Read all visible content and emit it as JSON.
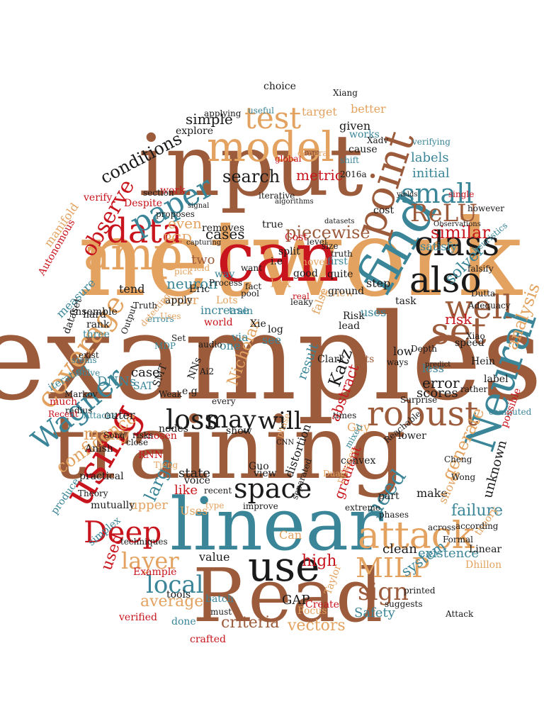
{
  "palette": {
    "brown": "#9c5b3b",
    "tan": "#e3a25f",
    "teal": "#3a8597",
    "red": "#c8141c",
    "black": "#1a1a1a"
  },
  "words": [
    {
      "text": "examples",
      "color": "brown"
    },
    {
      "text": "network",
      "color": "tan"
    },
    {
      "text": "input",
      "color": "brown"
    },
    {
      "text": "training",
      "color": "brown"
    },
    {
      "text": "linear",
      "color": "teal"
    },
    {
      "text": "Read",
      "color": "brown"
    },
    {
      "text": "can",
      "color": "red"
    },
    {
      "text": "find",
      "color": "teal"
    },
    {
      "text": "model",
      "color": "tan"
    },
    {
      "text": "amp",
      "color": "tan"
    },
    {
      "text": "data",
      "color": "red"
    },
    {
      "text": "paper",
      "color": "teal"
    },
    {
      "text": "point",
      "color": "brown"
    },
    {
      "text": "class",
      "color": "black"
    },
    {
      "text": "also",
      "color": "black"
    },
    {
      "text": "well",
      "color": "brown"
    },
    {
      "text": "set",
      "color": "brown"
    },
    {
      "text": "Neural",
      "color": "teal"
    },
    {
      "text": "coverage",
      "color": "tan"
    },
    {
      "text": "using",
      "color": "red"
    },
    {
      "text": "Wagner",
      "color": "teal"
    },
    {
      "text": "attack",
      "color": "tan"
    },
    {
      "text": "robust",
      "color": "brown"
    },
    {
      "text": "use",
      "color": "black"
    },
    {
      "text": "Deep",
      "color": "red"
    },
    {
      "text": "space",
      "color": "black"
    },
    {
      "text": "loss",
      "color": "black"
    },
    {
      "text": "MILP",
      "color": "tan"
    },
    {
      "text": "test",
      "color": "tan"
    },
    {
      "text": "small",
      "color": "teal"
    },
    {
      "text": "ReLU",
      "color": "brown"
    },
    {
      "text": "layer",
      "color": "tan"
    },
    {
      "text": "local",
      "color": "teal"
    },
    {
      "text": "sign",
      "color": "brown"
    },
    {
      "text": "may",
      "color": "black"
    },
    {
      "text": "will",
      "color": "black"
    },
    {
      "text": "need",
      "color": "teal"
    },
    {
      "text": "observe",
      "color": "red"
    },
    {
      "text": "conditions",
      "color": "black"
    },
    {
      "text": "search",
      "color": "black"
    },
    {
      "text": "piecewise",
      "color": "brown"
    },
    {
      "text": "similar",
      "color": "red"
    },
    {
      "text": "criteria",
      "color": "brown"
    },
    {
      "text": "average",
      "color": "tan"
    },
    {
      "text": "confidence",
      "color": "tan"
    },
    {
      "text": "analysis",
      "color": "tan"
    },
    {
      "text": "generate",
      "color": "tan"
    },
    {
      "text": "failure",
      "color": "teal"
    },
    {
      "text": "used",
      "color": "red"
    },
    {
      "text": "vectors",
      "color": "tan"
    },
    {
      "text": "system",
      "color": "teal"
    },
    {
      "text": "existence",
      "color": "teal"
    },
    {
      "text": "Safety",
      "color": "teal"
    },
    {
      "text": "many",
      "color": "tan"
    },
    {
      "text": "high",
      "color": "red"
    },
    {
      "text": "large",
      "color": "teal"
    },
    {
      "text": "simple",
      "color": "black"
    },
    {
      "text": "two",
      "color": "brown"
    },
    {
      "text": "cases",
      "color": "black"
    },
    {
      "text": "neuron",
      "color": "teal"
    },
    {
      "text": "order",
      "color": "tan"
    },
    {
      "text": "even",
      "color": "tan"
    },
    {
      "text": "metric",
      "color": "red"
    },
    {
      "text": "initial",
      "color": "teal"
    },
    {
      "text": "labels",
      "color": "teal"
    },
    {
      "text": "solver",
      "color": "teal"
    },
    {
      "text": "risk",
      "color": "red"
    },
    {
      "text": "error",
      "color": "black"
    },
    {
      "text": "scores",
      "color": "black"
    },
    {
      "text": "unknown",
      "color": "black"
    },
    {
      "text": "Katz",
      "color": "black"
    },
    {
      "text": "Nicholas",
      "color": "tan"
    },
    {
      "text": "result",
      "color": "teal"
    },
    {
      "text": "abstract",
      "color": "red"
    },
    {
      "text": "case",
      "color": "black"
    },
    {
      "text": "DNNs",
      "color": "teal"
    },
    {
      "text": "upper",
      "color": "tan"
    },
    {
      "text": "clean",
      "color": "black"
    },
    {
      "text": "GAP",
      "color": "black"
    },
    {
      "text": "PGD",
      "color": "tan"
    },
    {
      "text": "tend",
      "color": "black"
    },
    {
      "text": "measure",
      "color": "teal"
    },
    {
      "text": "manifold",
      "color": "tan"
    },
    {
      "text": "Autonomous",
      "color": "red"
    },
    {
      "text": "dataset",
      "color": "black"
    },
    {
      "text": "iteration",
      "color": "teal"
    },
    {
      "text": "much",
      "color": "red"
    },
    {
      "text": "Guy",
      "color": "tan"
    },
    {
      "text": "make",
      "color": "black"
    },
    {
      "text": "shows",
      "color": "tan"
    },
    {
      "text": "Linear",
      "color": "black"
    },
    {
      "text": "Dhillon",
      "color": "tan"
    },
    {
      "text": "Uses",
      "color": "tan"
    },
    {
      "text": "Can",
      "color": "tan"
    },
    {
      "text": "produce",
      "color": "teal"
    },
    {
      "text": "simplex",
      "color": "teal"
    },
    {
      "text": "practical",
      "color": "black"
    },
    {
      "text": "Example",
      "color": "red"
    },
    {
      "text": "verified",
      "color": "red"
    },
    {
      "text": "crafted",
      "color": "red"
    },
    {
      "text": "done",
      "color": "teal"
    },
    {
      "text": "Focus",
      "color": "tan"
    },
    {
      "text": "Clark",
      "color": "black"
    },
    {
      "text": "Hein",
      "color": "black"
    },
    {
      "text": "label",
      "color": "black"
    },
    {
      "text": "low",
      "color": "black"
    },
    {
      "text": "less",
      "color": "teal"
    },
    {
      "text": "sets",
      "color": "brown"
    },
    {
      "text": "uses",
      "color": "teal"
    },
    {
      "text": "speed",
      "color": "black"
    },
    {
      "text": "via",
      "color": "teal"
    },
    {
      "text": "one",
      "color": "teal"
    },
    {
      "text": "see",
      "color": "teal"
    },
    {
      "text": "box",
      "color": "tan"
    },
    {
      "text": "increase",
      "color": "teal"
    },
    {
      "text": "false",
      "color": "tan"
    },
    {
      "text": "gradient",
      "color": "red"
    },
    {
      "text": "distortion",
      "color": "black"
    },
    {
      "text": "step",
      "color": "black"
    },
    {
      "text": "satisfy",
      "color": "teal"
    },
    {
      "text": "cost",
      "color": "black"
    },
    {
      "text": "given",
      "color": "black"
    },
    {
      "text": "better",
      "color": "tan"
    },
    {
      "text": "target",
      "color": "tan"
    },
    {
      "text": "works",
      "color": "teal"
    },
    {
      "text": "cause",
      "color": "black"
    },
    {
      "text": "choice",
      "color": "black"
    },
    {
      "text": "Xiang",
      "color": "black"
    },
    {
      "text": "verify",
      "color": "red"
    },
    {
      "text": "work",
      "color": "red"
    },
    {
      "text": "explore",
      "color": "black"
    },
    {
      "text": "applying",
      "color": "black"
    },
    {
      "text": "useful",
      "color": "teal"
    },
    {
      "text": "state",
      "color": "black"
    },
    {
      "text": "like",
      "color": "red"
    },
    {
      "text": "mutually",
      "color": "black"
    },
    {
      "text": "outer",
      "color": "black"
    },
    {
      "text": "Anish",
      "color": "black"
    },
    {
      "text": "radius",
      "color": "black"
    },
    {
      "text": "Attacks",
      "color": "teal"
    },
    {
      "text": "Recent",
      "color": "red"
    },
    {
      "text": "Markov",
      "color": "black"
    },
    {
      "text": "Solve",
      "color": "teal"
    },
    {
      "text": "ensemble",
      "color": "black"
    },
    {
      "text": "hard",
      "color": "black"
    },
    {
      "text": "rank",
      "color": "black"
    },
    {
      "text": "three",
      "color": "teal"
    },
    {
      "text": "SMT",
      "color": "black"
    },
    {
      "text": "SAT",
      "color": "teal"
    },
    {
      "text": "Weak",
      "color": "black"
    },
    {
      "text": "NNs",
      "color": "black"
    },
    {
      "text": "e.g",
      "color": "black"
    },
    {
      "text": "Eric",
      "color": "black"
    },
    {
      "text": "apply",
      "color": "black"
    },
    {
      "text": "world",
      "color": "red"
    },
    {
      "text": "errors",
      "color": "teal"
    },
    {
      "text": "Set",
      "color": "black"
    },
    {
      "text": "show",
      "color": "black"
    },
    {
      "text": "nodes",
      "color": "black"
    },
    {
      "text": "must",
      "color": "black"
    },
    {
      "text": "tools",
      "color": "black"
    },
    {
      "text": "batch",
      "color": "teal"
    },
    {
      "text": "value",
      "color": "black"
    },
    {
      "text": "techniques",
      "color": "black"
    },
    {
      "text": "voice",
      "color": "black"
    },
    {
      "text": "RNN",
      "color": "red"
    },
    {
      "text": "chosen",
      "color": "red"
    },
    {
      "text": "global",
      "color": "red"
    },
    {
      "text": "proposes",
      "color": "black"
    },
    {
      "text": "Despite",
      "color": "red"
    },
    {
      "text": "removes",
      "color": "black"
    },
    {
      "text": "way",
      "color": "teal"
    },
    {
      "text": "Lots",
      "color": "tan"
    },
    {
      "text": "train",
      "color": "teal"
    },
    {
      "text": "Xie",
      "color": "black"
    },
    {
      "text": "log",
      "color": "black"
    },
    {
      "text": "i.e",
      "color": "black"
    },
    {
      "text": "novel",
      "color": "tan"
    },
    {
      "text": "good",
      "color": "black"
    },
    {
      "text": "first",
      "color": "teal"
    },
    {
      "text": "quite",
      "color": "black"
    },
    {
      "text": "review",
      "color": "tan"
    },
    {
      "text": "Risk",
      "color": "black"
    },
    {
      "text": "lead",
      "color": "black"
    },
    {
      "text": "ground",
      "color": "black"
    },
    {
      "text": "truth",
      "color": "black"
    },
    {
      "text": "Cost",
      "color": "red"
    },
    {
      "text": "true",
      "color": "black"
    },
    {
      "text": "split",
      "color": "black"
    },
    {
      "text": "task",
      "color": "black"
    },
    {
      "text": "heuristics",
      "color": "teal"
    },
    {
      "text": "falsify",
      "color": "black"
    },
    {
      "text": "Adequacy",
      "color": "black"
    },
    {
      "text": "Dutta",
      "color": "black"
    },
    {
      "text": "Xiao",
      "color": "black"
    },
    {
      "text": "Xadv",
      "color": "black"
    },
    {
      "text": "verifying",
      "color": "teal"
    },
    {
      "text": "shift",
      "color": "teal"
    },
    {
      "text": "2016a",
      "color": "black"
    },
    {
      "text": "suggests",
      "color": "black"
    },
    {
      "text": "across",
      "color": "black"
    },
    {
      "text": "theory",
      "color": "tan"
    },
    {
      "text": "computed",
      "color": "teal"
    },
    {
      "text": "possible",
      "color": "red"
    },
    {
      "text": "according",
      "color": "black"
    },
    {
      "text": "Cheng",
      "color": "black"
    },
    {
      "text": "Formal",
      "color": "black"
    },
    {
      "text": "Wong",
      "color": "black"
    },
    {
      "text": "predict",
      "color": "black"
    },
    {
      "text": "rather",
      "color": "black"
    },
    {
      "text": "Taylor",
      "color": "tan"
    },
    {
      "text": "Create",
      "color": "red"
    },
    {
      "text": "printed",
      "color": "black"
    },
    {
      "text": "phases",
      "color": "black"
    },
    {
      "text": "convex",
      "color": "black"
    },
    {
      "text": "part",
      "color": "black"
    },
    {
      "text": "Dual",
      "color": "tan"
    },
    {
      "text": "extreme",
      "color": "black"
    },
    {
      "text": "separated",
      "color": "black"
    },
    {
      "text": "Distance",
      "color": "tan"
    },
    {
      "text": "lower",
      "color": "black"
    },
    {
      "text": "Reachable",
      "color": "black"
    },
    {
      "text": "Guo",
      "color": "black"
    },
    {
      "text": "view",
      "color": "black"
    },
    {
      "text": "improve",
      "color": "black"
    },
    {
      "text": "recent",
      "color": "black"
    },
    {
      "text": "type",
      "color": "tan"
    },
    {
      "text": "Song",
      "color": "black"
    },
    {
      "text": "Tjeng",
      "color": "tan"
    },
    {
      "text": "mixed",
      "color": "teal"
    },
    {
      "text": "times",
      "color": "black"
    },
    {
      "text": "pool",
      "color": "black"
    },
    {
      "text": "fact",
      "color": "black"
    },
    {
      "text": "Process",
      "color": "black"
    },
    {
      "text": "want",
      "color": "black"
    },
    {
      "text": "Yield",
      "color": "tan"
    },
    {
      "text": "pick",
      "color": "tan"
    },
    {
      "text": "audio",
      "color": "black"
    },
    {
      "text": "Uses",
      "color": "tan"
    },
    {
      "text": "detecting",
      "color": "tan"
    },
    {
      "text": "Truth",
      "color": "black"
    },
    {
      "text": "section",
      "color": "black"
    },
    {
      "text": "single",
      "color": "red"
    },
    {
      "text": "however",
      "color": "black"
    },
    {
      "text": "level",
      "color": "black"
    },
    {
      "text": "size",
      "color": "black"
    },
    {
      "text": "real",
      "color": "red"
    },
    {
      "text": "ways",
      "color": "black"
    },
    {
      "text": "Depth",
      "color": "black"
    },
    {
      "text": "stems",
      "color": "teal"
    },
    {
      "text": "exist",
      "color": "black"
    },
    {
      "text": "risks",
      "color": "black"
    },
    {
      "text": "close",
      "color": "black"
    },
    {
      "text": "every",
      "color": "black"
    },
    {
      "text": "phase",
      "color": "tan"
    },
    {
      "text": "Surprise",
      "color": "black"
    },
    {
      "text": "Output",
      "color": "black"
    },
    {
      "text": "Theory",
      "color": "black"
    },
    {
      "text": "Attack",
      "color": "black"
    },
    {
      "text": "Ai2",
      "color": "black"
    },
    {
      "text": "MDP",
      "color": "teal"
    },
    {
      "text": "leaky",
      "color": "black"
    },
    {
      "text": "iterative",
      "color": "black"
    },
    {
      "text": "algorithms",
      "color": "black"
    },
    {
      "text": "datasets",
      "color": "black"
    },
    {
      "text": "capturing",
      "color": "black"
    },
    {
      "text": "signal",
      "color": "black"
    },
    {
      "text": "general",
      "color": "tan"
    },
    {
      "text": "yields",
      "color": "black"
    },
    {
      "text": "CNN",
      "color": "black"
    },
    {
      "text": "Observations",
      "color": "black"
    }
  ]
}
